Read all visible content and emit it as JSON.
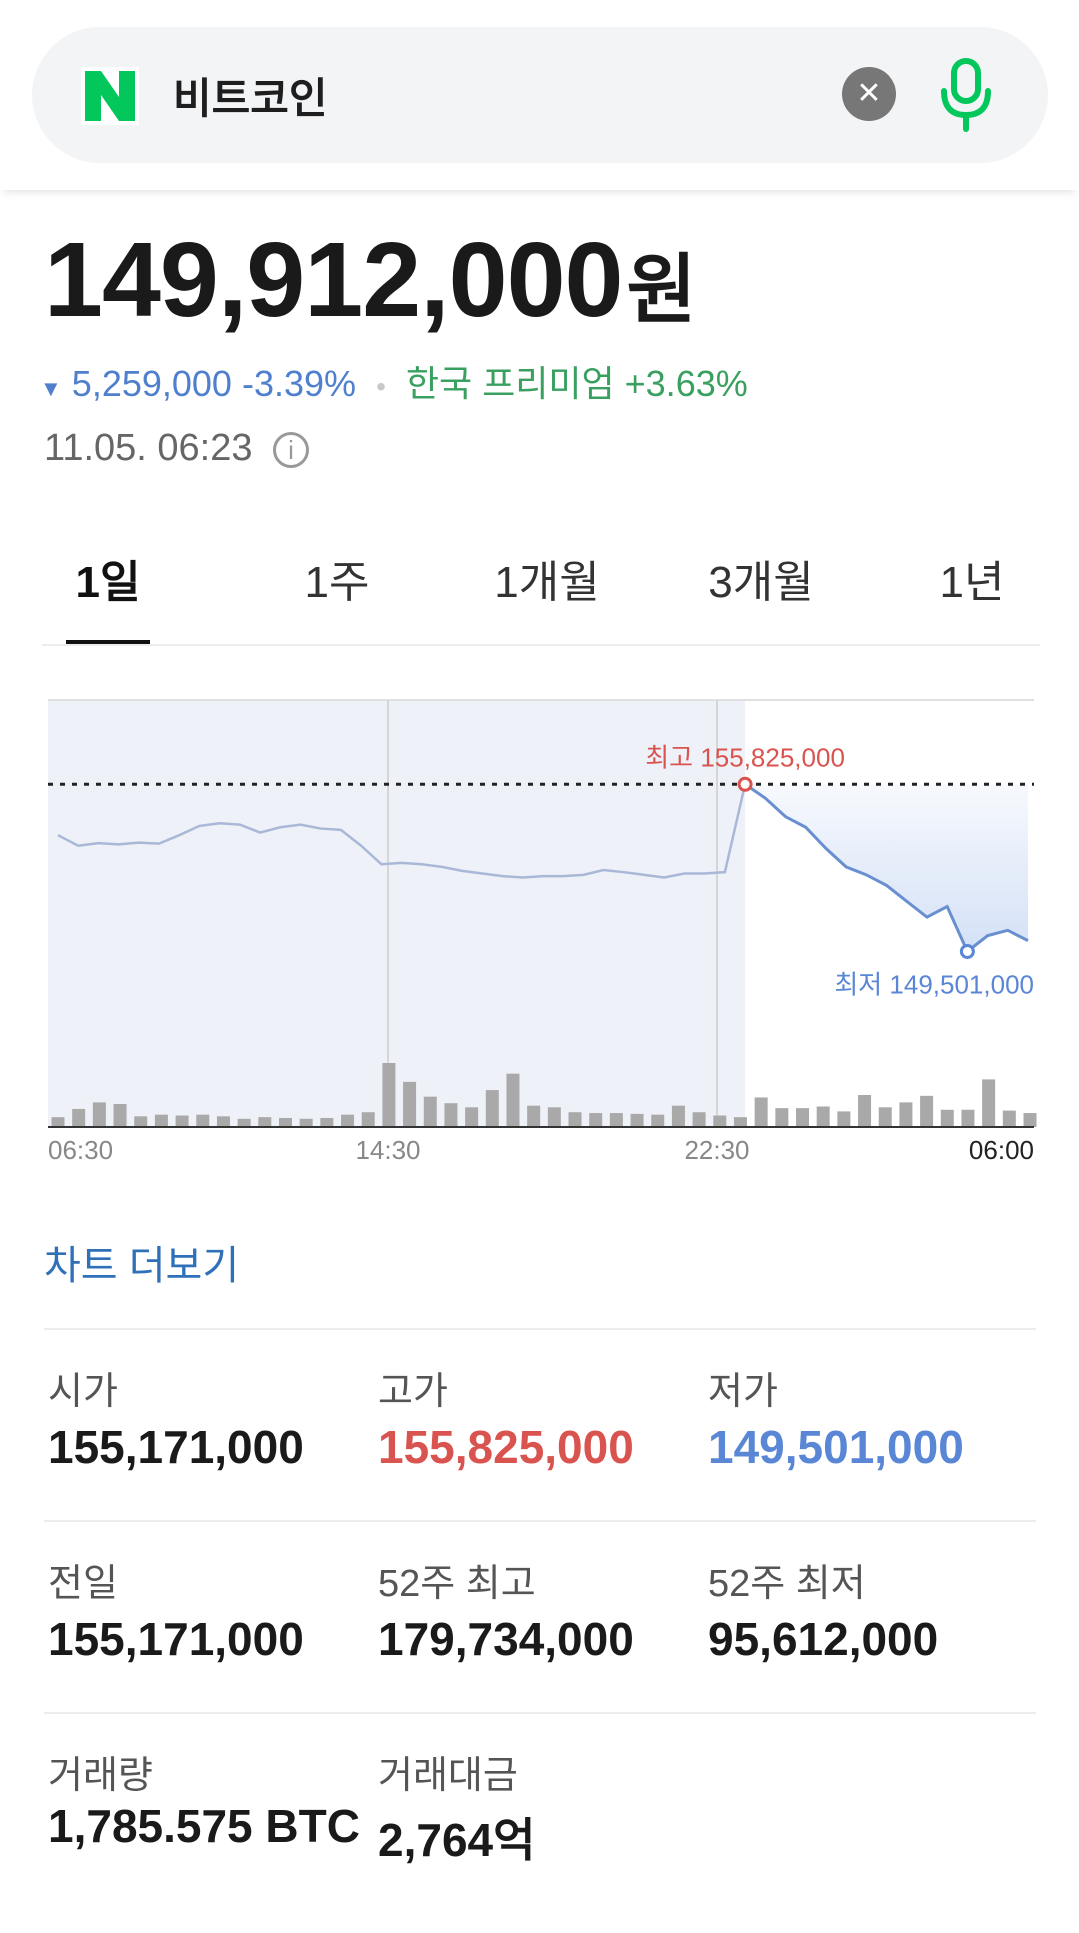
{
  "search": {
    "query": "비트코인",
    "logo_letter": "N",
    "clear_icon": "close-icon",
    "mic_icon": "microphone-icon",
    "brand_color": "#03c75a"
  },
  "quote": {
    "price": "149,912,000",
    "unit": "원",
    "change_arrow": "▼",
    "change_amount": "5,259,000",
    "change_percent": "-3.39%",
    "premium_label": "한국 프리미엄",
    "premium_value": "+3.63%",
    "timestamp": "11.05. 06:23",
    "info_glyph": "i"
  },
  "tabs": [
    {
      "label": "1일",
      "active": true
    },
    {
      "label": "1주",
      "active": false
    },
    {
      "label": "1개월",
      "active": false
    },
    {
      "label": "3개월",
      "active": false
    },
    {
      "label": "1년",
      "active": false
    }
  ],
  "chart_data": {
    "type": "line",
    "x_ticks": [
      "06:30",
      "14:30",
      "22:30",
      "06:00"
    ],
    "price": [
      153900000,
      153500000,
      153600000,
      153550000,
      153620000,
      153580000,
      153900000,
      154250000,
      154350000,
      154300000,
      154000000,
      154200000,
      154300000,
      154150000,
      154100000,
      153500000,
      152800000,
      152850000,
      152800000,
      152700000,
      152550000,
      152450000,
      152350000,
      152300000,
      152350000,
      152350000,
      152400000,
      152580000,
      152500000,
      152400000,
      152300000,
      152450000,
      152450000,
      152500000,
      155825000,
      155300000,
      154600000,
      154200000,
      153400000,
      152700000,
      152400000,
      152000000,
      151400000,
      150800000,
      151200000,
      149501000,
      150100000,
      150300000,
      149912000
    ],
    "high": {
      "label": "최고",
      "value": 155825000,
      "text": "155,825,000"
    },
    "low": {
      "label": "최저",
      "value": 149501000,
      "text": "149,501,000"
    },
    "reference_line": 155825000,
    "volume": [
      1.2,
      2.2,
      3.0,
      2.8,
      1.3,
      1.5,
      1.4,
      1.5,
      1.3,
      1.0,
      1.2,
      1.1,
      1.0,
      1.1,
      1.5,
      1.8,
      7.8,
      5.5,
      3.7,
      2.9,
      2.4,
      4.5,
      6.5,
      2.6,
      2.4,
      1.8,
      1.7,
      1.7,
      1.6,
      1.5,
      2.6,
      1.8,
      1.4,
      1.2,
      3.6,
      2.3,
      2.3,
      2.5,
      1.9,
      3.9,
      2.4,
      3.0,
      3.8,
      2.1,
      2.1,
      5.8,
      2.0,
      1.7
    ],
    "grid": true,
    "legend": "none",
    "colors": {
      "line": "#9fb3d8",
      "high": "#d9534f",
      "low": "#5a86d6",
      "volume": "#a9a9a9",
      "shade": "#eef1f7",
      "fill": "#c9d9f4"
    }
  },
  "more_link": "차트 더보기",
  "stats": [
    [
      {
        "label": "시가",
        "value": "155,171,000",
        "tone": "normal"
      },
      {
        "label": "고가",
        "value": "155,825,000",
        "tone": "high"
      },
      {
        "label": "저가",
        "value": "149,501,000",
        "tone": "low"
      }
    ],
    [
      {
        "label": "전일",
        "value": "155,171,000",
        "tone": "normal"
      },
      {
        "label": "52주 최고",
        "value": "179,734,000",
        "tone": "normal"
      },
      {
        "label": "52주 최저",
        "value": "95,612,000",
        "tone": "normal"
      }
    ],
    [
      {
        "label": "거래량",
        "value": "1,785.575 BTC",
        "tone": "normal"
      },
      {
        "label": "거래대금",
        "value": "2,764억",
        "tone": "normal"
      }
    ]
  ]
}
